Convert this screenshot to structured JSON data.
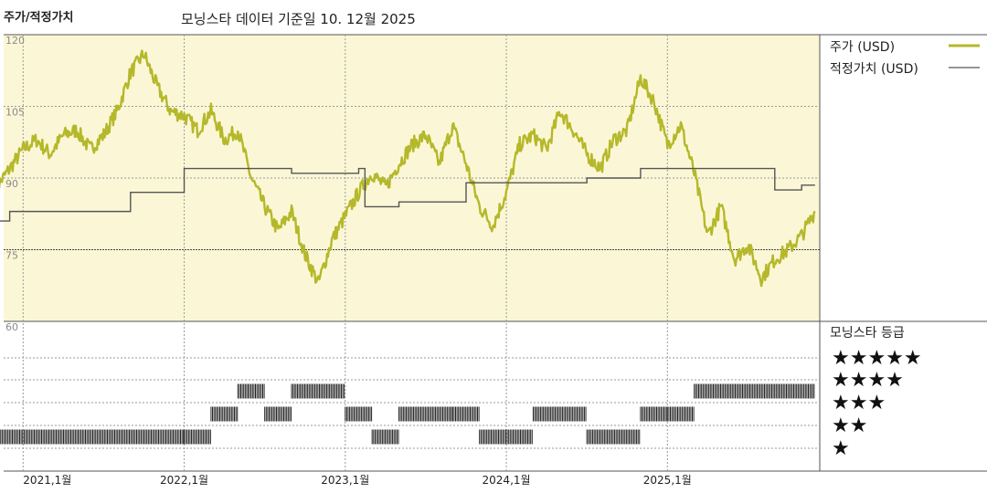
{
  "header": {
    "left_title": "주가/적정가치",
    "main_title": "모닝스타 데이터 기준일 10. 12월 2025"
  },
  "colors": {
    "price": "#b5b82a",
    "fair_value": "#555555",
    "panel_bg": "#fbf7d6",
    "rating_bar": "#222222"
  },
  "legend": {
    "price_label": "주가 (USD)",
    "fair_label": "적정가치 (USD)",
    "rating_title": "모닝스타 등급"
  },
  "chart_data": {
    "type": "line",
    "y_ticks": [
      "120",
      "105",
      "90",
      "75",
      "60"
    ],
    "ylim": [
      60,
      120
    ],
    "x_ticks": [
      "2021,1월",
      "2022,1월",
      "2023,1월",
      "2024,1월",
      "2025,1월"
    ],
    "x_range": [
      "2020-11",
      "2025-12"
    ],
    "series": [
      {
        "name": "주가 (USD)",
        "points": [
          [
            "2020-11",
            88
          ],
          [
            "2020-12",
            92
          ],
          [
            "2021-01",
            96
          ],
          [
            "2021-02",
            98
          ],
          [
            "2021-03",
            95
          ],
          [
            "2021-04",
            99
          ],
          [
            "2021-05",
            100
          ],
          [
            "2021-06",
            96
          ],
          [
            "2021-07",
            99
          ],
          [
            "2021-08",
            104
          ],
          [
            "2021-09",
            112
          ],
          [
            "2021-10",
            116
          ],
          [
            "2021-11",
            109
          ],
          [
            "2021-12",
            104
          ],
          [
            "2022-01",
            103
          ],
          [
            "2022-02",
            100
          ],
          [
            "2022-03",
            104
          ],
          [
            "2022-04",
            98
          ],
          [
            "2022-05",
            100
          ],
          [
            "2022-06",
            90
          ],
          [
            "2022-07",
            84
          ],
          [
            "2022-08",
            79
          ],
          [
            "2022-09",
            83
          ],
          [
            "2022-10",
            74
          ],
          [
            "2022-11",
            68
          ],
          [
            "2022-12",
            77
          ],
          [
            "2023-01",
            82
          ],
          [
            "2023-02",
            87
          ],
          [
            "2023-03",
            91
          ],
          [
            "2023-04",
            88
          ],
          [
            "2023-05",
            93
          ],
          [
            "2023-06",
            97
          ],
          [
            "2023-07",
            99
          ],
          [
            "2023-08",
            93
          ],
          [
            "2023-09",
            101
          ],
          [
            "2023-10",
            93
          ],
          [
            "2023-11",
            84
          ],
          [
            "2023-12",
            80
          ],
          [
            "2024-01",
            87
          ],
          [
            "2024-02",
            97
          ],
          [
            "2024-03",
            99
          ],
          [
            "2024-04",
            96
          ],
          [
            "2024-05",
            104
          ],
          [
            "2024-06",
            100
          ],
          [
            "2024-07",
            95
          ],
          [
            "2024-08",
            92
          ],
          [
            "2024-09",
            98
          ],
          [
            "2024-10",
            100
          ],
          [
            "2024-11",
            111
          ],
          [
            "2024-12",
            106
          ],
          [
            "2025-01",
            97
          ],
          [
            "2025-02",
            101
          ],
          [
            "2025-03",
            91
          ],
          [
            "2025-04",
            78
          ],
          [
            "2025-05",
            84
          ],
          [
            "2025-06",
            73
          ],
          [
            "2025-07",
            76
          ],
          [
            "2025-08",
            69
          ],
          [
            "2025-09",
            73
          ],
          [
            "2025-10",
            75
          ],
          [
            "2025-11",
            78
          ],
          [
            "2025-12",
            83
          ]
        ]
      },
      {
        "name": "적정가치 (USD)",
        "steps": [
          [
            "2020-11",
            81
          ],
          [
            "2020-12",
            83
          ],
          [
            "2021-09",
            87
          ],
          [
            "2022-01",
            92
          ],
          [
            "2022-09",
            91
          ],
          [
            "2023-02",
            92
          ],
          [
            "2023-02-15",
            84
          ],
          [
            "2023-05",
            85
          ],
          [
            "2023-10",
            89
          ],
          [
            "2024-07",
            90
          ],
          [
            "2024-11",
            92
          ],
          [
            "2025-09",
            87.5
          ],
          [
            "2025-11",
            88.5
          ]
        ]
      }
    ],
    "rating": {
      "labels": [
        "★★★★★",
        "★★★★",
        "★★★",
        "★★",
        "★"
      ],
      "segments": [
        [
          "2020-11",
          "2022-01",
          2
        ],
        [
          "2022-01",
          "2022-03",
          2
        ],
        [
          "2022-03",
          "2022-05",
          3
        ],
        [
          "2022-05",
          "2022-07",
          4
        ],
        [
          "2022-07",
          "2022-09",
          3
        ],
        [
          "2022-09",
          "2023-01",
          4
        ],
        [
          "2023-01",
          "2023-03",
          3
        ],
        [
          "2023-03",
          "2023-05",
          2
        ],
        [
          "2023-05",
          "2023-09",
          3
        ],
        [
          "2023-09",
          "2023-11",
          3
        ],
        [
          "2023-11",
          "2024-03",
          2
        ],
        [
          "2024-03",
          "2024-07",
          3
        ],
        [
          "2024-07",
          "2024-11",
          2
        ],
        [
          "2024-11",
          "2025-01",
          3
        ],
        [
          "2025-01",
          "2025-03",
          3
        ],
        [
          "2025-03",
          "2025-12",
          4
        ]
      ]
    }
  }
}
